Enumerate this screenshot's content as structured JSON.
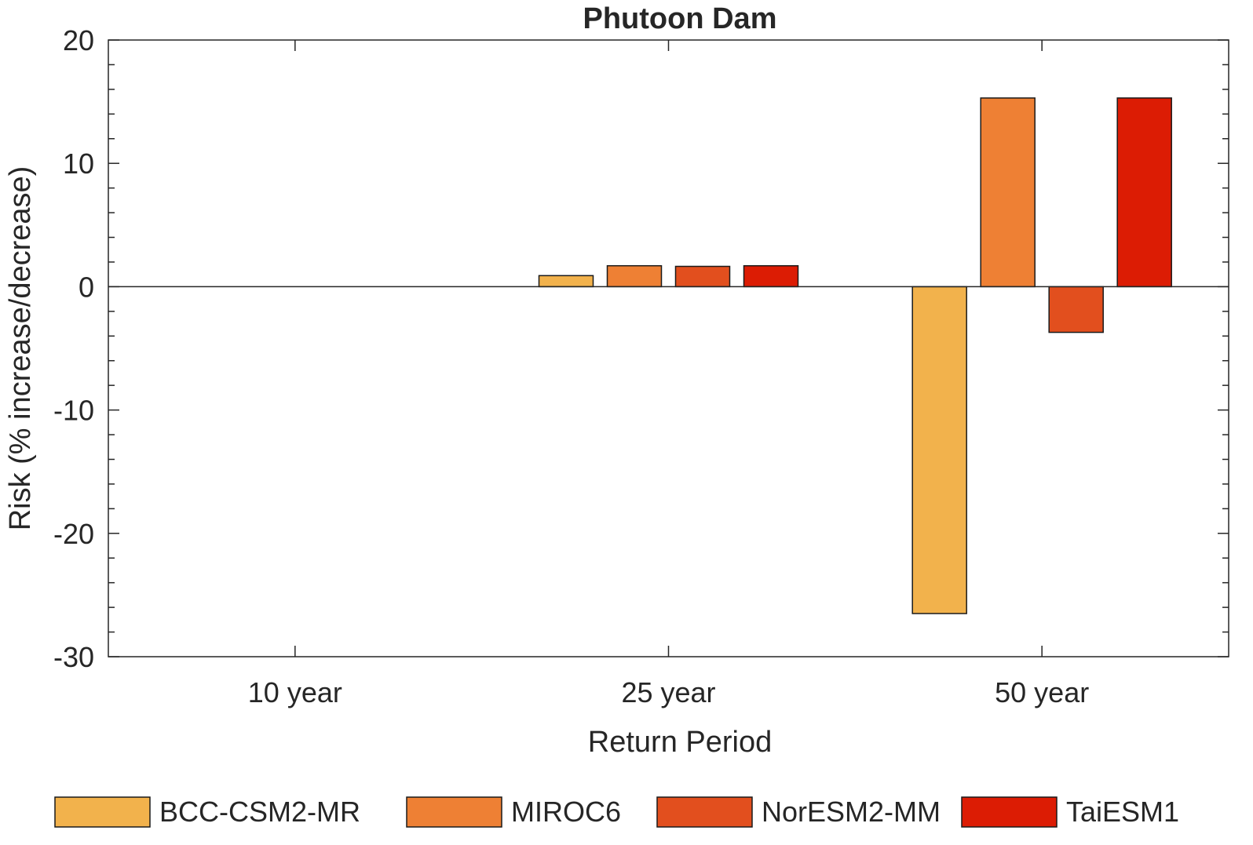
{
  "chart_data": {
    "type": "bar",
    "title": "Phutoon Dam",
    "xlabel": "Return Period",
    "ylabel": "Risk (% increase/decrease)",
    "categories": [
      "10 year",
      "25 year",
      "50 year"
    ],
    "ylim": [
      -30,
      20
    ],
    "yticks": [
      -30,
      -20,
      -10,
      0,
      10,
      20
    ],
    "grid": false,
    "legend_position": "bottom",
    "series": [
      {
        "name": "BCC-CSM2-MR",
        "color": "#F2B24C",
        "values": [
          0,
          0.9,
          -26.5
        ]
      },
      {
        "name": "MIROC6",
        "color": "#EE8034",
        "values": [
          0,
          1.7,
          15.3
        ]
      },
      {
        "name": "NorESM2-MM",
        "color": "#E24F1E",
        "values": [
          0,
          1.65,
          -3.7
        ]
      },
      {
        "name": "TaiESM1",
        "color": "#DC1C04",
        "values": [
          0,
          1.7,
          15.3
        ]
      }
    ]
  }
}
